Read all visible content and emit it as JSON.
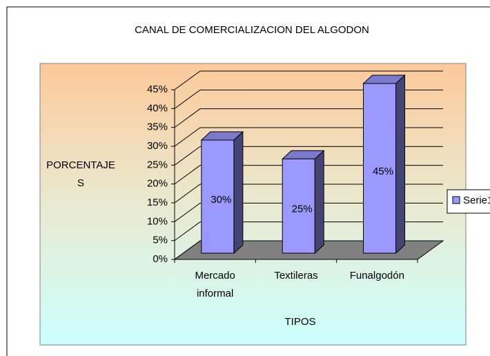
{
  "chart_data": {
    "type": "bar3d",
    "title": "CANAL DE COMERCIALIZACION DEL ALGODON",
    "y_label": "PORCENTAJES",
    "x_label": "TIPOS",
    "categories": [
      "Mercado informal",
      "Textileras",
      "Funalgodón"
    ],
    "series": [
      {
        "name": "Serie1",
        "color": "#9999ff",
        "values": [
          30,
          25,
          45
        ],
        "value_labels": [
          "30%",
          "25%",
          "45%"
        ]
      }
    ],
    "ylim": [
      0,
      45
    ],
    "yticks": [
      {
        "value": 0,
        "label": "0%"
      },
      {
        "value": 5,
        "label": "5%"
      },
      {
        "value": 10,
        "label": "10%"
      },
      {
        "value": 15,
        "label": "15%"
      },
      {
        "value": 20,
        "label": "20%"
      },
      {
        "value": 25,
        "label": "25%"
      },
      {
        "value": 30,
        "label": "30%"
      },
      {
        "value": 35,
        "label": "35%"
      },
      {
        "value": 40,
        "label": "40%"
      },
      {
        "value": 45,
        "label": "45%"
      }
    ],
    "grid": true,
    "legend": "right"
  }
}
